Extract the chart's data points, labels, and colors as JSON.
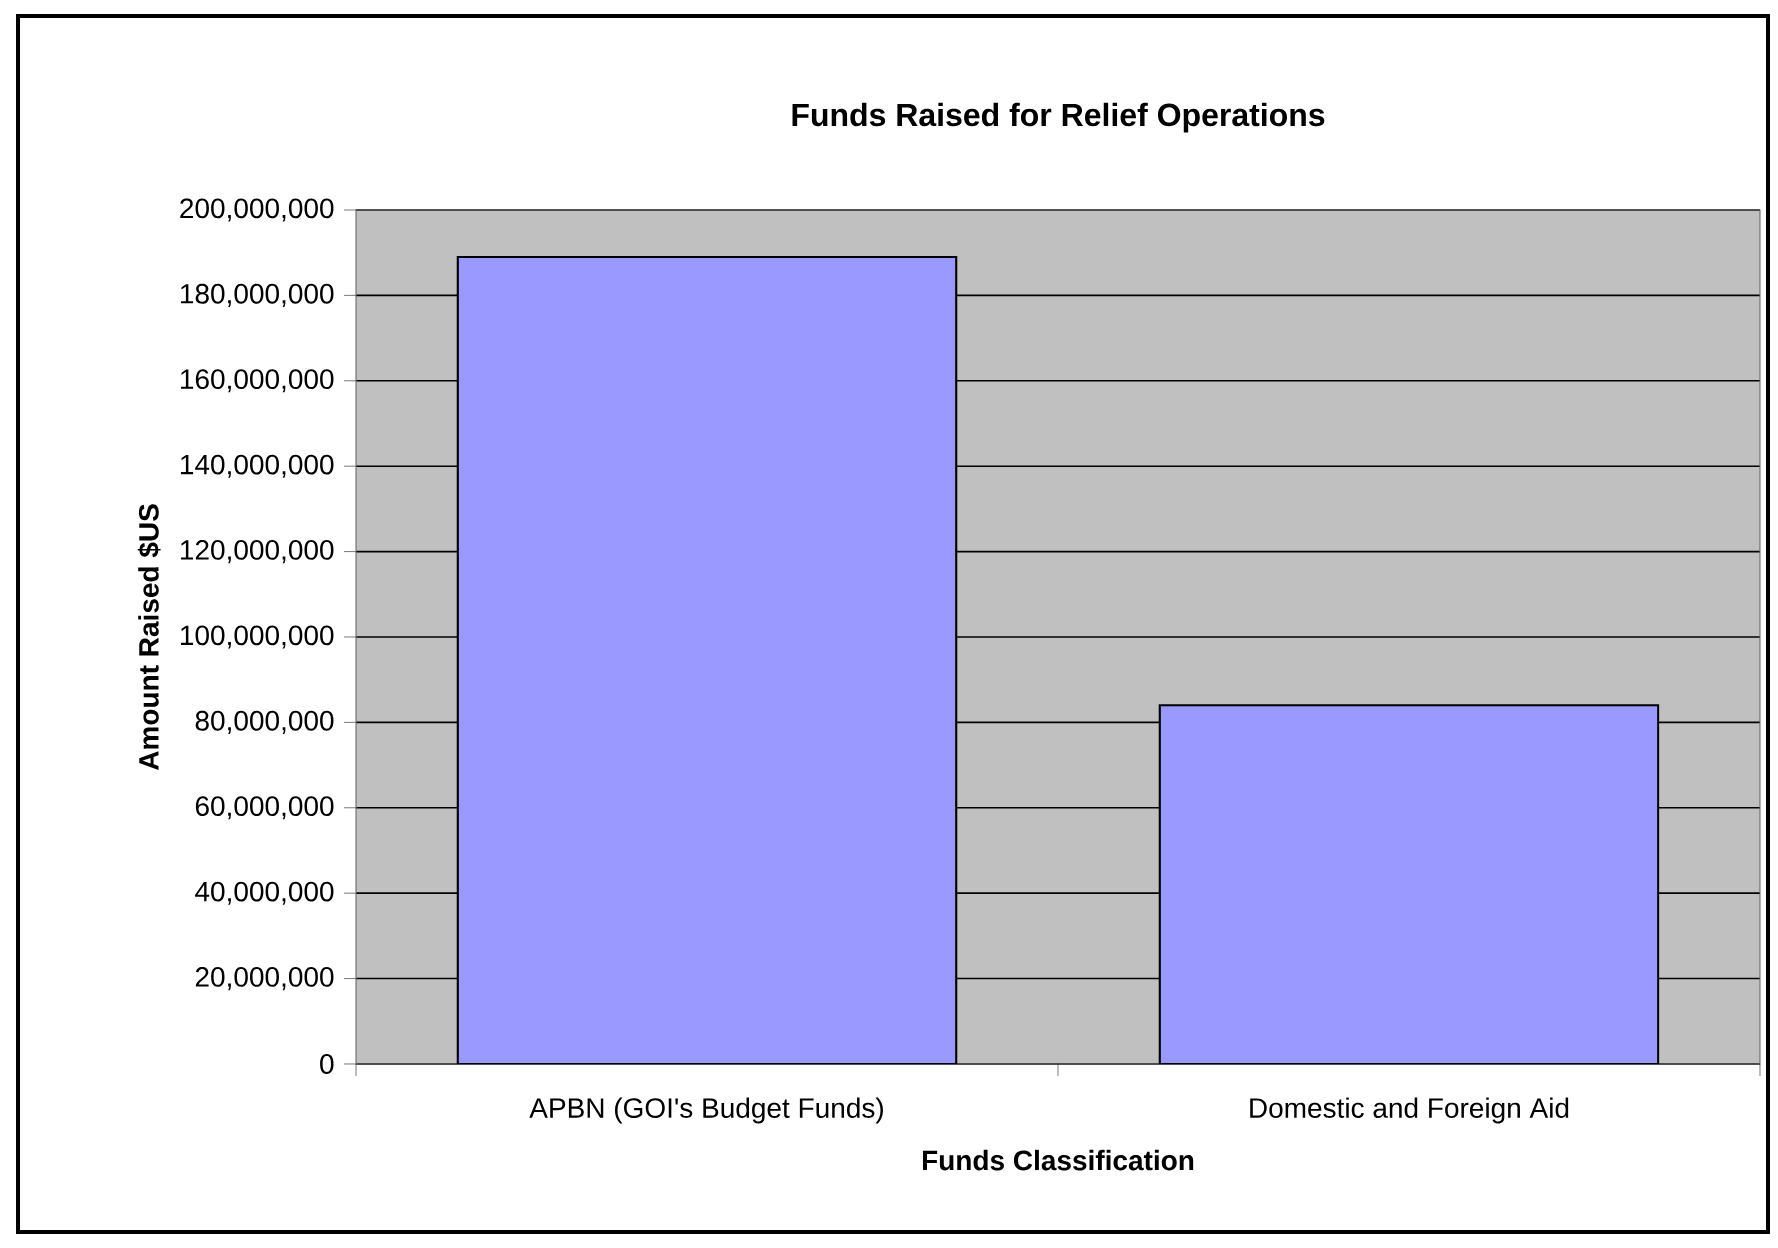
{
  "chart_data": {
    "type": "bar",
    "title": "Funds Raised for Relief Operations",
    "xlabel": "Funds Classification",
    "ylabel": "Amount Raised $US",
    "categories": [
      "APBN (GOI's Budget Funds)",
      "Domestic and Foreign Aid"
    ],
    "values": [
      189000000,
      84000000
    ],
    "color": "#9999ff",
    "ylim": [
      0,
      200000000
    ],
    "yticks": [
      {
        "value": 0,
        "label": "0"
      },
      {
        "value": 20000000,
        "label": "20,000,000"
      },
      {
        "value": 40000000,
        "label": "40,000,000"
      },
      {
        "value": 60000000,
        "label": "60,000,000"
      },
      {
        "value": 80000000,
        "label": "80,000,000"
      },
      {
        "value": 100000000,
        "label": "100,000,000"
      },
      {
        "value": 120000000,
        "label": "120,000,000"
      },
      {
        "value": 140000000,
        "label": "140,000,000"
      },
      {
        "value": 160000000,
        "label": "160,000,000"
      },
      {
        "value": 180000000,
        "label": "180,000,000"
      },
      {
        "value": 200000000,
        "label": "200,000,000"
      }
    ],
    "grid": "y"
  }
}
